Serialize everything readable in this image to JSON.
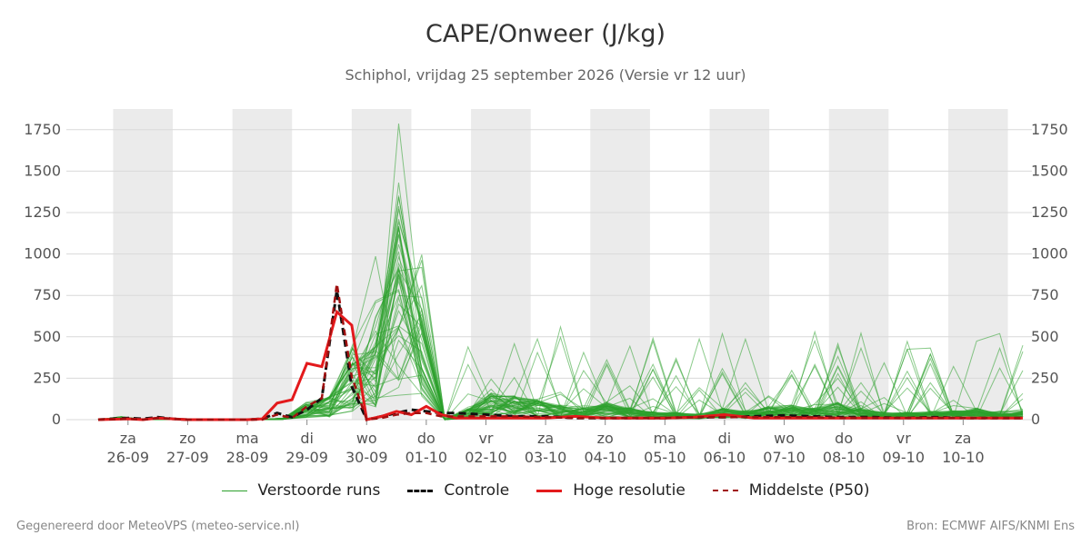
{
  "title": "CAPE/Onweer (J/kg)",
  "subtitle": "Schiphol, vrijdag 25 september 2026 (Versie vr 12 uur)",
  "footer": {
    "left": "Gegenereerd door MeteoVPS (meteo-service.nl)",
    "right": "Bron: ECMWF AIFS/KNMI Ens"
  },
  "legend": [
    {
      "label": "Verstoorde runs",
      "style": "thin-green",
      "color": "#2ca02c"
    },
    {
      "label": "Controle",
      "style": "dashed-black",
      "color": "#111111"
    },
    {
      "label": "Hoge resolutie",
      "style": "solid-red",
      "color": "#e31a1c"
    },
    {
      "label": "Middelste (P50)",
      "style": "dashed-darkred",
      "color": "#a01010"
    }
  ],
  "chart_data": {
    "type": "line",
    "x_unit": "days since 2026-09-25 12:00",
    "xlim": [
      0,
      15.5
    ],
    "ylim": [
      0,
      1875
    ],
    "yticks": [
      0,
      250,
      500,
      750,
      1000,
      1250,
      1500,
      1750
    ],
    "grid": true,
    "legend_position": "bottom",
    "x_ticks": [
      {
        "x": 0.5,
        "day": "za",
        "date": "26-09"
      },
      {
        "x": 1.5,
        "day": "zo",
        "date": "27-09"
      },
      {
        "x": 2.5,
        "day": "ma",
        "date": "28-09"
      },
      {
        "x": 3.5,
        "day": "di",
        "date": "29-09"
      },
      {
        "x": 4.5,
        "day": "wo",
        "date": "30-09"
      },
      {
        "x": 5.5,
        "day": "do",
        "date": "01-10"
      },
      {
        "x": 6.5,
        "day": "vr",
        "date": "02-10"
      },
      {
        "x": 7.5,
        "day": "za",
        "date": "03-10"
      },
      {
        "x": 8.5,
        "day": "zo",
        "date": "04-10"
      },
      {
        "x": 9.5,
        "day": "ma",
        "date": "05-10"
      },
      {
        "x": 10.5,
        "day": "di",
        "date": "06-10"
      },
      {
        "x": 11.5,
        "day": "wo",
        "date": "07-10"
      },
      {
        "x": 12.5,
        "day": "do",
        "date": "08-10"
      },
      {
        "x": 13.5,
        "day": "vr",
        "date": "09-10"
      },
      {
        "x": 14.5,
        "day": "za",
        "date": "10-10"
      }
    ],
    "shaded_days": [
      [
        0.25,
        1.25
      ],
      [
        2.25,
        3.25
      ],
      [
        4.25,
        5.25
      ],
      [
        6.25,
        7.25
      ],
      [
        8.25,
        9.25
      ],
      [
        10.25,
        11.25
      ],
      [
        12.25,
        13.25
      ],
      [
        14.25,
        15.25
      ]
    ],
    "series": [
      {
        "name": "Controle",
        "style": "dashed-black",
        "x": [
          0,
          0.5,
          0.75,
          1,
          1.25,
          1.5,
          2,
          2.5,
          2.75,
          3,
          3.25,
          3.5,
          3.75,
          4,
          4.25,
          4.5,
          4.75,
          5,
          5.25,
          5.5,
          5.75,
          6,
          6.5,
          7,
          7.5,
          8,
          8.5,
          9,
          9.5,
          10,
          10.5,
          11,
          11.5,
          12,
          12.5,
          13,
          13.5,
          14,
          14.5,
          15,
          15.5
        ],
        "y": [
          0,
          10,
          5,
          15,
          5,
          0,
          0,
          0,
          5,
          40,
          15,
          60,
          130,
          780,
          200,
          0,
          20,
          40,
          60,
          50,
          40,
          40,
          30,
          20,
          20,
          10,
          10,
          10,
          10,
          15,
          15,
          20,
          25,
          20,
          15,
          15,
          10,
          15,
          10,
          10,
          10
        ]
      },
      {
        "name": "Hoge resolutie",
        "style": "solid-red",
        "x": [
          0,
          0.5,
          0.75,
          1,
          1.25,
          1.5,
          2,
          2.5,
          2.75,
          3,
          3.25,
          3.5,
          3.75,
          4,
          4.25,
          4.5,
          4.75,
          5,
          5.25,
          5.5,
          5.75,
          6,
          6.5,
          7,
          7.5,
          8,
          8.5,
          9,
          9.5,
          10,
          10.5,
          11,
          11.5,
          12,
          12.5,
          13,
          13.5,
          14,
          14.5,
          15,
          15.5
        ],
        "y": [
          0,
          5,
          0,
          10,
          5,
          0,
          0,
          0,
          5,
          100,
          120,
          340,
          320,
          650,
          570,
          0,
          20,
          50,
          30,
          80,
          30,
          10,
          10,
          10,
          10,
          20,
          10,
          10,
          10,
          15,
          30,
          10,
          10,
          10,
          10,
          10,
          10,
          10,
          10,
          10,
          10
        ]
      },
      {
        "name": "Middelste (P50)",
        "style": "dashed-darkred",
        "x": [
          0,
          0.5,
          0.75,
          1,
          1.25,
          1.5,
          2,
          2.5,
          2.75,
          3,
          3.25,
          3.5,
          3.75,
          4,
          4.25,
          4.5,
          4.75,
          5,
          5.25,
          5.5,
          5.75,
          6,
          6.5,
          7,
          7.5,
          8,
          8.5,
          9,
          9.5,
          10,
          10.5,
          11,
          11.5,
          12,
          12.5,
          13,
          13.5,
          14,
          14.5,
          15,
          15.5
        ],
        "y": [
          0,
          5,
          0,
          10,
          5,
          0,
          0,
          0,
          0,
          30,
          10,
          80,
          130,
          820,
          260,
          0,
          10,
          30,
          40,
          40,
          20,
          20,
          20,
          20,
          15,
          10,
          10,
          10,
          10,
          15,
          15,
          15,
          15,
          15,
          10,
          10,
          10,
          10,
          10,
          10,
          10
        ]
      }
    ]
  }
}
